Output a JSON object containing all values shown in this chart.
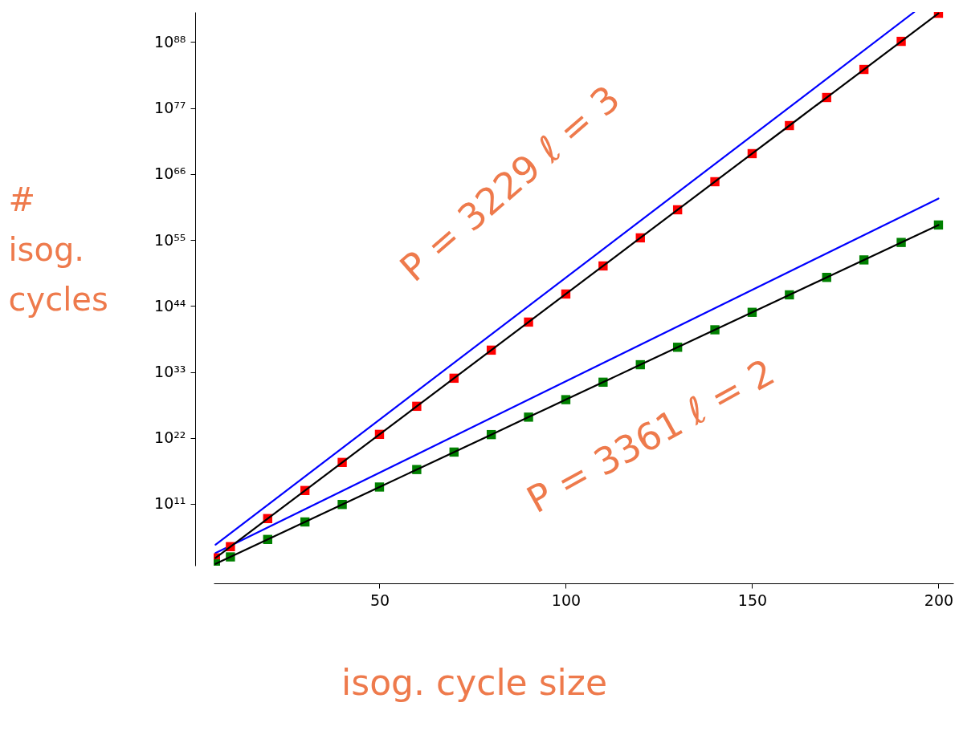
{
  "chart_data": {
    "type": "line",
    "xlabel": "isog. cycle size",
    "ylabel": "# isog. cycles",
    "annotations": [
      "P = 3229   ℓ = 3",
      "P = 3361   ℓ = 2"
    ],
    "log": "y",
    "grid": false,
    "xlim": [
      5.5,
      204
    ],
    "xticks": [
      50,
      100,
      150,
      200
    ],
    "ylim": [
      5,
      1e+93
    ],
    "yticks": [
      {
        "value": 100000000000.0,
        "label": "10¹¹"
      },
      {
        "value": 1e+22,
        "label": "10²²"
      },
      {
        "value": 1e+33,
        "label": "10³³"
      },
      {
        "value": 1e+44,
        "label": "10⁴⁴"
      },
      {
        "value": 1e+55,
        "label": "10⁵⁵"
      },
      {
        "value": 1e+66,
        "label": "10⁶⁶"
      },
      {
        "value": 1e+77,
        "label": "10⁷⁷"
      },
      {
        "value": 1e+88,
        "label": "10⁸⁸"
      }
    ],
    "x": [
      6,
      10,
      20,
      30,
      40,
      50,
      60,
      70,
      80,
      90,
      100,
      110,
      120,
      130,
      140,
      150,
      160,
      170,
      180,
      190,
      200
    ],
    "series": [
      {
        "color": "#0000ff",
        "x": [
          6,
          193.5
        ],
        "values": [
          15800.0,
          1e+93
        ]
      },
      {
        "color": "#0000ff",
        "x": [
          6,
          200
        ],
        "values": [
          630.0,
          7.9e+61
        ]
      },
      {
        "type": "scatter",
        "marker": "square",
        "color": "#ff0000",
        "values": [
          100.0,
          7450.0,
          356000000.0,
          17100000000000.0,
          8.17e+17,
          3.91e+22,
          1.87e+27,
          8.95e+31,
          4.29e+36,
          2.05e+41,
          9.82e+45,
          4.7e+50,
          2.25e+55,
          1.08e+60,
          5.15e+64,
          2.47e+69,
          1.18e+74,
          5.65e+78,
          2.7e+83,
          1.29e+88,
          6.19e+92
        ]
      },
      {
        "color": "#000000",
        "values": [
          100.0,
          7450.0,
          356000000.0,
          17100000000000.0,
          8.17e+17,
          3.91e+22,
          1.87e+27,
          8.95e+31,
          4.29e+36,
          2.05e+41,
          9.82e+45,
          4.7e+50,
          2.25e+55,
          1.08e+60,
          5.15e+64,
          2.47e+69,
          1.18e+74,
          5.65e+78,
          2.7e+83,
          1.29e+88,
          6.19e+92
        ]
      },
      {
        "type": "scatter",
        "marker": "square",
        "color": "#008000",
        "values": [
          10.0,
          146.0,
          119000.0,
          97700000.0,
          79800000000.0,
          65200000000000.0,
          5.33e+16,
          4.36e+19,
          3.56e+22,
          2.91e+25,
          2.38e+28,
          1.94e+31,
          1.59e+34,
          1.3e+37,
          1.06e+40,
          8.67e+42,
          7.08e+45,
          5.78e+48,
          4.73e+51,
          3.86e+54,
          3.16e+57
        ]
      },
      {
        "color": "#000000",
        "values": [
          10.0,
          146.0,
          119000.0,
          97700000.0,
          79800000000.0,
          65200000000000.0,
          5.33e+16,
          4.36e+19,
          3.56e+22,
          2.91e+25,
          2.38e+28,
          1.94e+31,
          1.59e+34,
          1.3e+37,
          1.06e+40,
          8.67e+42,
          7.08e+45,
          5.78e+48,
          4.73e+51,
          3.86e+54,
          3.16e+57
        ]
      }
    ]
  }
}
